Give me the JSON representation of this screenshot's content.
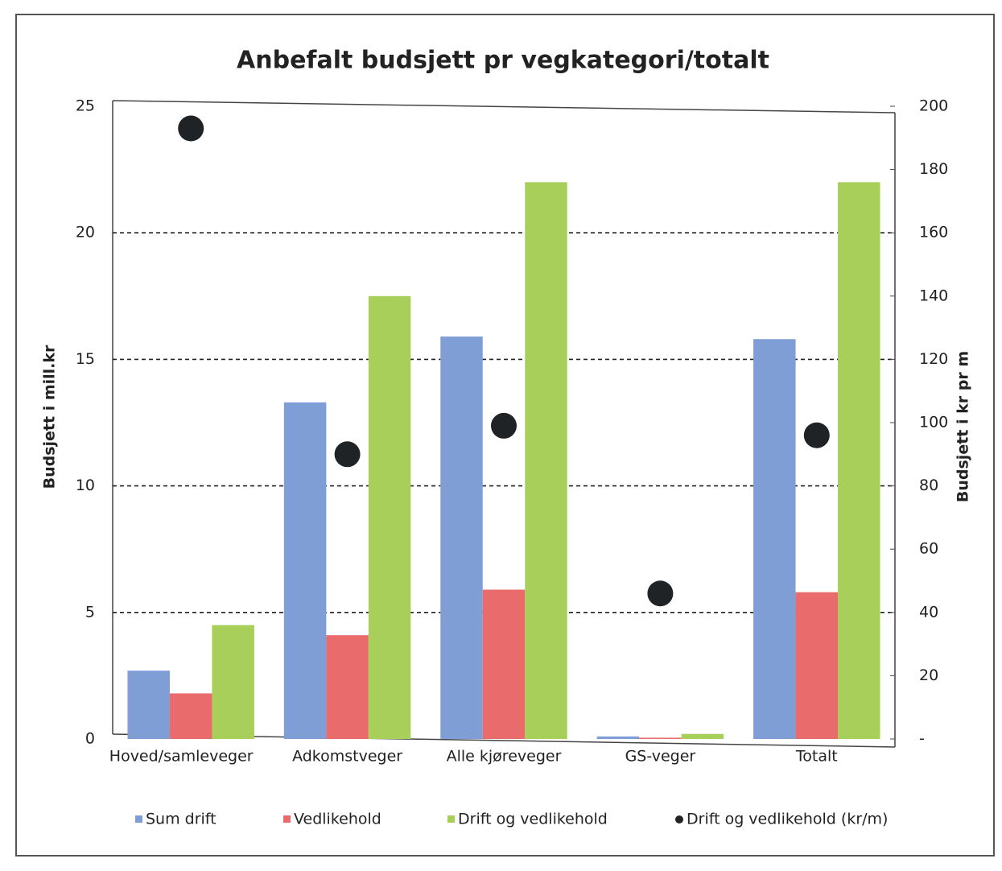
{
  "chart_data": {
    "type": "bar",
    "title": "Anbefalt budsjett pr vegkategori/totalt",
    "ylabel": "Budsjett i mill.kr",
    "y2label": "Budsjett i kr pr m",
    "categories": [
      "Hoved/samleveger",
      "Adkomstveger",
      "Alle kjøreveger",
      "GS-veger",
      "Totalt"
    ],
    "series": [
      {
        "name": "Sum drift",
        "color": "#7f9ed6",
        "values": [
          2.7,
          13.3,
          15.9,
          0.1,
          15.8
        ]
      },
      {
        "name": "Vedlikehold",
        "color": "#ea6b6b",
        "values": [
          1.8,
          4.1,
          5.9,
          0.05,
          5.8
        ]
      },
      {
        "name": "Drift og vedlikehold",
        "color": "#a9cf5b",
        "values": [
          4.5,
          17.5,
          22.0,
          0.2,
          22.0
        ]
      },
      {
        "name": "Drift og vedlikehold (kr/m)",
        "color": "#1f2326",
        "axis": "y2",
        "values": [
          193,
          90,
          99,
          46,
          96
        ]
      }
    ],
    "ylim": [
      0,
      25
    ],
    "yticks": [
      0,
      5,
      10,
      15,
      20,
      25
    ],
    "y2lim": [
      0,
      200
    ],
    "y2ticks": [
      {
        "value": 0,
        "label": "-"
      },
      20,
      40,
      60,
      80,
      100,
      120,
      140,
      160,
      180,
      200
    ],
    "grid": true,
    "legend": "bottom"
  }
}
